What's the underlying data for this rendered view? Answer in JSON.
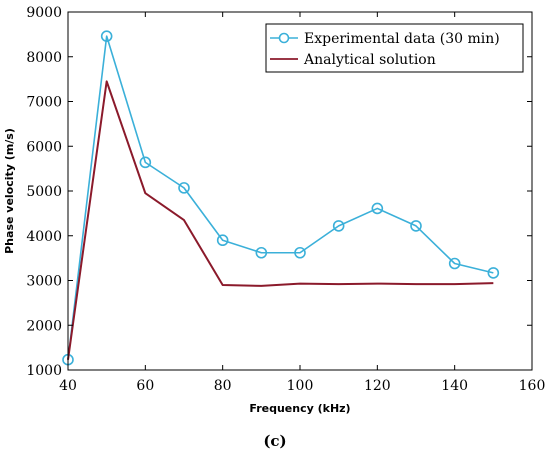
{
  "chart_data": {
    "type": "line",
    "xlabel": "Frequency (kHz)",
    "ylabel": "Phase velocity (m/s)",
    "xlim": [
      40,
      160
    ],
    "ylim": [
      1000,
      9000
    ],
    "xticks": [
      40,
      60,
      80,
      100,
      120,
      140,
      160
    ],
    "yticks": [
      1000,
      2000,
      3000,
      4000,
      5000,
      6000,
      7000,
      8000,
      9000
    ],
    "legend_position": "top-right",
    "caption": "(c)",
    "series": [
      {
        "name": "Experimental data (30 min)",
        "color": "#3bb0d9",
        "marker": "circle",
        "x": [
          40,
          50,
          60,
          70,
          80,
          90,
          100,
          110,
          120,
          130,
          140,
          150
        ],
        "y": [
          1230,
          8460,
          5640,
          5070,
          3900,
          3620,
          3620,
          4220,
          4610,
          4220,
          3380,
          3170
        ]
      },
      {
        "name": "Analytical solution",
        "color": "#8b1a2b",
        "marker": "none",
        "x": [
          40,
          50,
          60,
          70,
          80,
          90,
          100,
          110,
          120,
          130,
          140,
          150
        ],
        "y": [
          1230,
          7450,
          4950,
          4350,
          2900,
          2880,
          2930,
          2920,
          2930,
          2920,
          2920,
          2940
        ]
      }
    ]
  }
}
